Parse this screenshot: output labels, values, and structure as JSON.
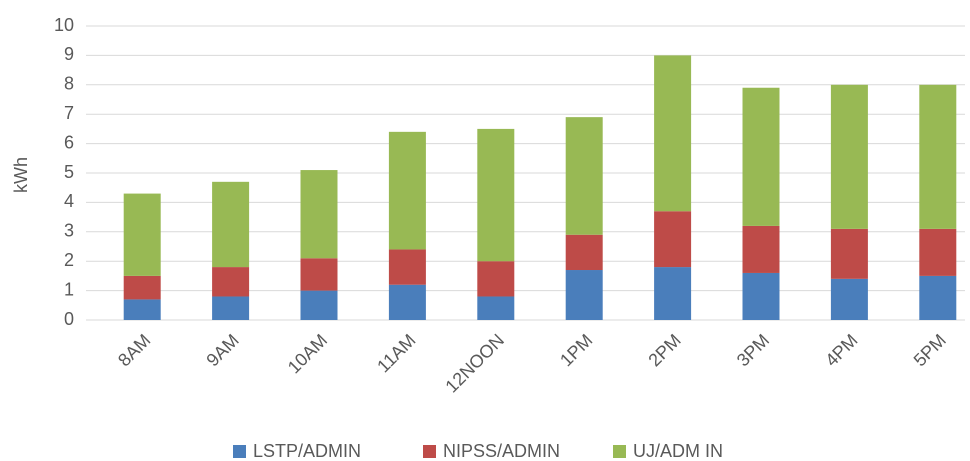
{
  "chart_data": {
    "type": "stacked_bar",
    "y_label": "kWh",
    "categories": [
      "8AM",
      "9AM",
      "10AM",
      "11AM",
      "12NOON",
      "1PM",
      "2PM",
      "3PM",
      "4PM",
      "5PM"
    ],
    "series": [
      {
        "name": "LSTP/ADMIN",
        "color": "#4a7ebb",
        "values": [
          0.7,
          0.8,
          1.0,
          1.2,
          0.8,
          1.7,
          1.8,
          1.6,
          1.4,
          1.5
        ]
      },
      {
        "name": "NIPSS/ADMIN",
        "color": "#be4b48",
        "values": [
          0.8,
          1.0,
          1.1,
          1.2,
          1.2,
          1.2,
          1.9,
          1.6,
          1.7,
          1.6
        ]
      },
      {
        "name": "UJ/ADM IN",
        "color": "#98b954",
        "values": [
          2.8,
          2.9,
          3.0,
          4.0,
          4.5,
          4.0,
          5.3,
          4.7,
          4.9,
          4.9
        ]
      }
    ],
    "ylim": [
      0,
      10
    ],
    "yticks": [
      0,
      1,
      2,
      3,
      4,
      5,
      6,
      7,
      8,
      9,
      10
    ],
    "grid": true,
    "legend": "bottom"
  }
}
